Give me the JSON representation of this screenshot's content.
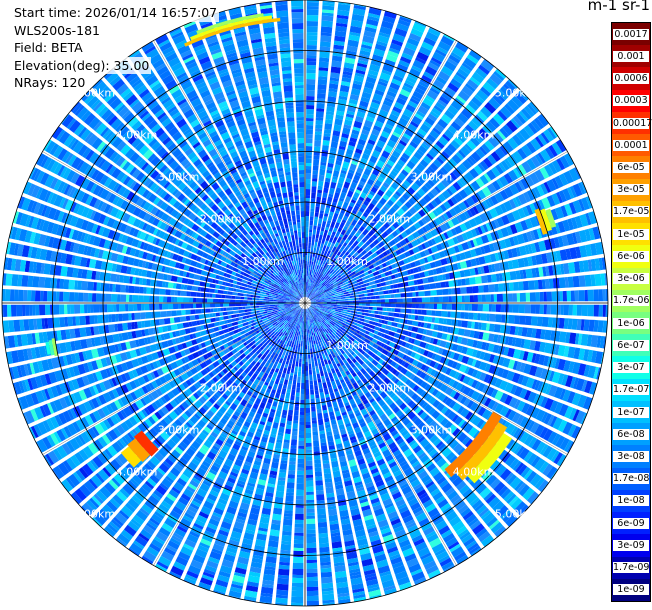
{
  "header": {
    "start_time": "Start time: 2026/01/14 16:57:07",
    "instrument": "WLS200s-181",
    "field": "Field: BETA",
    "elevation": "Elevation(deg): 35.00",
    "nrays": "NRays: 120"
  },
  "colorbar": {
    "title": "m-1 sr-1",
    "labels": [
      "0.0017",
      "0.001",
      "0.0006",
      "0.0003",
      "0.00017",
      "0.0001",
      "6e-05",
      "3e-05",
      "1.7e-05",
      "1e-05",
      "6e-06",
      "3e-06",
      "1.7e-06",
      "1e-06",
      "6e-07",
      "3e-07",
      "1.7e-07",
      "1e-07",
      "6e-08",
      "3e-08",
      "1.7e-08",
      "1e-08",
      "6e-09",
      "3e-09",
      "1.7e-09",
      "1e-09"
    ],
    "colors": [
      "#7a0000",
      "#a00000",
      "#d00000",
      "#ff0000",
      "#ff3000",
      "#ff5a00",
      "#ff8000",
      "#ffa000",
      "#ffc000",
      "#ffe000",
      "#f0ff10",
      "#c8ff40",
      "#a0ff60",
      "#78ff80",
      "#40ffb8",
      "#10ffe8",
      "#00e0ff",
      "#00c0ff",
      "#00a0ff",
      "#0080ff",
      "#0060ff",
      "#0040ff",
      "#0020ff",
      "#0000ee",
      "#0000b0",
      "#000080"
    ]
  },
  "ppi": {
    "range_labels_top": [
      "1.00km",
      "2.00km",
      "3.00km",
      "4.00km",
      "5.00km"
    ],
    "range_labels_bottom": [
      "1.00km",
      "2.00km",
      "3.00km",
      "4.00km",
      "5.00km"
    ],
    "range_labels_left_upper": [
      "1.00km",
      "2.00km",
      "3.00km",
      "4.00km",
      "5.00km"
    ],
    "range_labels_left_lower": [
      "2.00km",
      "3.00km",
      "4.00km",
      "5.00km"
    ]
  },
  "chart_data": {
    "type": "heatmap",
    "subtype": "ppi-polar",
    "quantity": "BETA",
    "units": "m-1 sr-1",
    "n_rays": 120,
    "elevation_deg": 35.0,
    "range_rings_km": [
      1,
      2,
      3,
      4,
      5
    ],
    "max_range_km": 6.0,
    "background_value_approx": 6e-08,
    "color_scale": "log",
    "value_range": [
      1e-09,
      0.0017
    ],
    "high_backscatter_features": [
      {
        "azimuth_deg": [
          335,
          355
        ],
        "range_km": [
          5.6,
          5.8
        ],
        "value_approx": 1e-05
      },
      {
        "azimuth_deg": [
          68,
          74
        ],
        "range_km": [
          4.9,
          5.2
        ],
        "value_approx": 1e-05
      },
      {
        "azimuth_deg": [
          120,
          140
        ],
        "range_km": [
          4.3,
          4.9
        ],
        "value_approx": 3e-05
      },
      {
        "azimuth_deg": [
          225,
          232
        ],
        "range_km": [
          4.1,
          4.7
        ],
        "value_approx": 6e-05
      },
      {
        "azimuth_deg": [
          258,
          262
        ],
        "range_km": [
          5.0,
          5.2
        ],
        "value_approx": 3e-06
      }
    ]
  }
}
